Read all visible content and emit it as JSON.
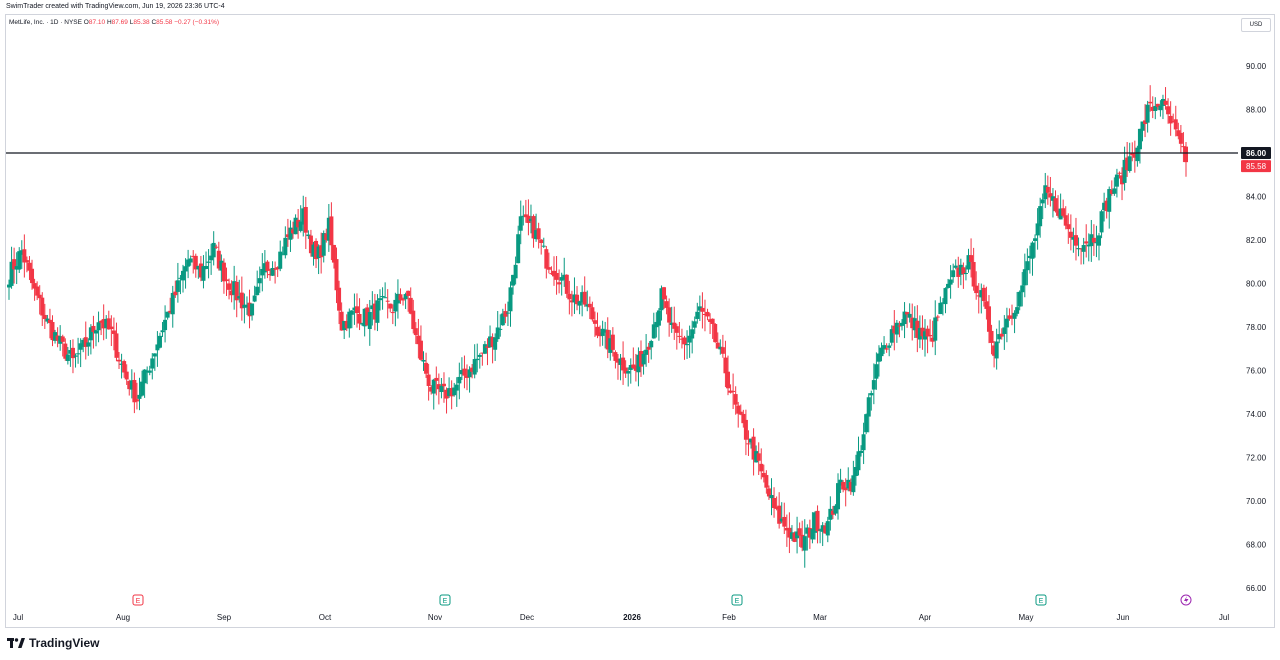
{
  "header": {
    "credit": "SwimTrader created with TradingView.com, Jun 19, 2026 23:36 UTC-4"
  },
  "legend": {
    "symbol": "MetLife, Inc. · 1D · NYSE",
    "o_label": "O",
    "o": "87.10",
    "h_label": "H",
    "h": "87.69",
    "l_label": "L",
    "l": "85.38",
    "c_label": "C",
    "c": "85.58",
    "change": "−0.27 (−0.31%)"
  },
  "currency": "USD",
  "brand": {
    "name": "TradingView"
  },
  "colors": {
    "up": "#089981",
    "down": "#f23645",
    "line": "#131722",
    "axis_text": "#131722"
  },
  "chart_data": {
    "type": "candlestick",
    "title": "MetLife, Inc. · 1D · NYSE",
    "y_axis": {
      "ticks": [
        66.0,
        68.0,
        70.0,
        72.0,
        74.0,
        76.0,
        78.0,
        80.0,
        82.0,
        84.0,
        86.0,
        88.0,
        90.0
      ],
      "range": [
        65.0,
        91.8
      ],
      "side": "right"
    },
    "x_axis": {
      "labels": [
        "Jul",
        "Aug",
        "Sep",
        "Oct",
        "Nov",
        "Dec",
        "2026",
        "Feb",
        "Mar",
        "Apr",
        "May",
        "Jun",
        "Jul"
      ]
    },
    "horizontal_line": {
      "value": 86.0,
      "label": "86.00"
    },
    "last_price": {
      "value": 85.58,
      "label": "85.58"
    },
    "earnings_markers": [
      {
        "month": "Aug",
        "label": "E",
        "color": "#f23645"
      },
      {
        "month": "Nov",
        "label": "E",
        "color": "#089981"
      },
      {
        "month": "Feb",
        "label": "E",
        "color": "#089981"
      },
      {
        "month": "May",
        "label": "E",
        "color": "#089981"
      }
    ],
    "dividend_marker": {
      "month": "Jun",
      "icon": "lightning-icon",
      "color": "#9c27b0"
    },
    "grid": false,
    "series": [
      {
        "name": "MET",
        "anchors_close": [
          80.4,
          81.5,
          79.6,
          78.2,
          77.2,
          76.4,
          77.2,
          78.4,
          77.7,
          75.9,
          74.7,
          76.3,
          78.0,
          79.5,
          81.1,
          80.5,
          81.6,
          80.2,
          79.3,
          78.7,
          80.7,
          81.1,
          82.4,
          83.1,
          81.0,
          82.6,
          78.1,
          78.7,
          78.4,
          79.0,
          78.9,
          79.6,
          77.0,
          75.2,
          74.9,
          75.3,
          76.1,
          76.8,
          77.7,
          78.9,
          82.8,
          82.5,
          81.1,
          80.4,
          79.4,
          79.1,
          78.0,
          77.1,
          76.3,
          76.0,
          77.4,
          79.4,
          77.5,
          77.3,
          78.8,
          77.7,
          76.0,
          73.8,
          72.6,
          70.9,
          69.3,
          68.6,
          68.0,
          69.1,
          68.9,
          70.8,
          70.9,
          73.8,
          76.6,
          77.8,
          78.6,
          77.9,
          77.3,
          79.2,
          80.5,
          80.9,
          79.3,
          77.1,
          78.4,
          79.5,
          81.7,
          84.1,
          83.5,
          82.2,
          81.9,
          82.3,
          84.1,
          85.0,
          86.2,
          87.9,
          88.4,
          87.1,
          85.58
        ],
        "last_close": 85.58
      }
    ]
  }
}
